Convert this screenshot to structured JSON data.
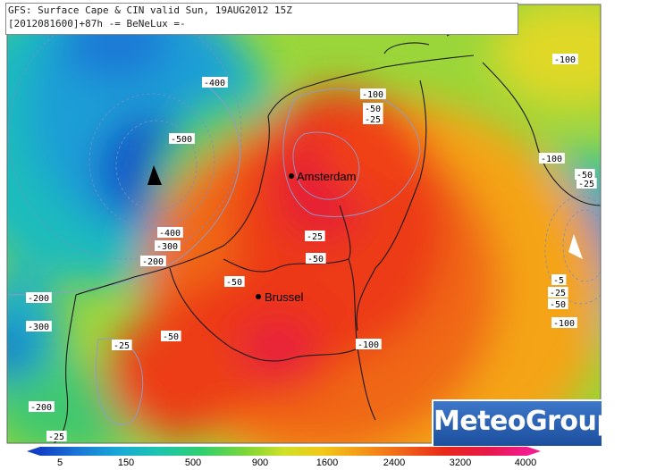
{
  "header": {
    "line1": "GFS: Surface Cape & CIN valid Sun, 19AUG2012 15Z",
    "line2": "[2012081600]+87h -= BeNeLux =-"
  },
  "brand": "MeteoGroup",
  "cities": [
    {
      "name": "Amsterdam"
    },
    {
      "name": "Brussel"
    }
  ],
  "cin_labels": [
    "-100",
    "-400",
    "-500",
    "-100",
    "-50",
    "-25",
    "-100",
    "-50",
    "-25",
    "-400",
    "-300",
    "-200",
    "-200",
    "-50",
    "-25",
    "-50",
    "-300",
    "-25",
    "-50",
    "-100",
    "-5",
    "-25",
    "-50",
    "-100",
    "-200",
    "-25"
  ],
  "colorbar": {
    "ticks": [
      "5",
      "150",
      "500",
      "900",
      "1600",
      "2400",
      "3200",
      "4000"
    ],
    "colors": [
      "#1240c4",
      "#1a78d6",
      "#18a8d8",
      "#1cc4b0",
      "#2ecf70",
      "#7ad638",
      "#cfe028",
      "#f2c818",
      "#f49818",
      "#f06018",
      "#e82818",
      "#e8184a",
      "#f21c8c"
    ]
  }
}
